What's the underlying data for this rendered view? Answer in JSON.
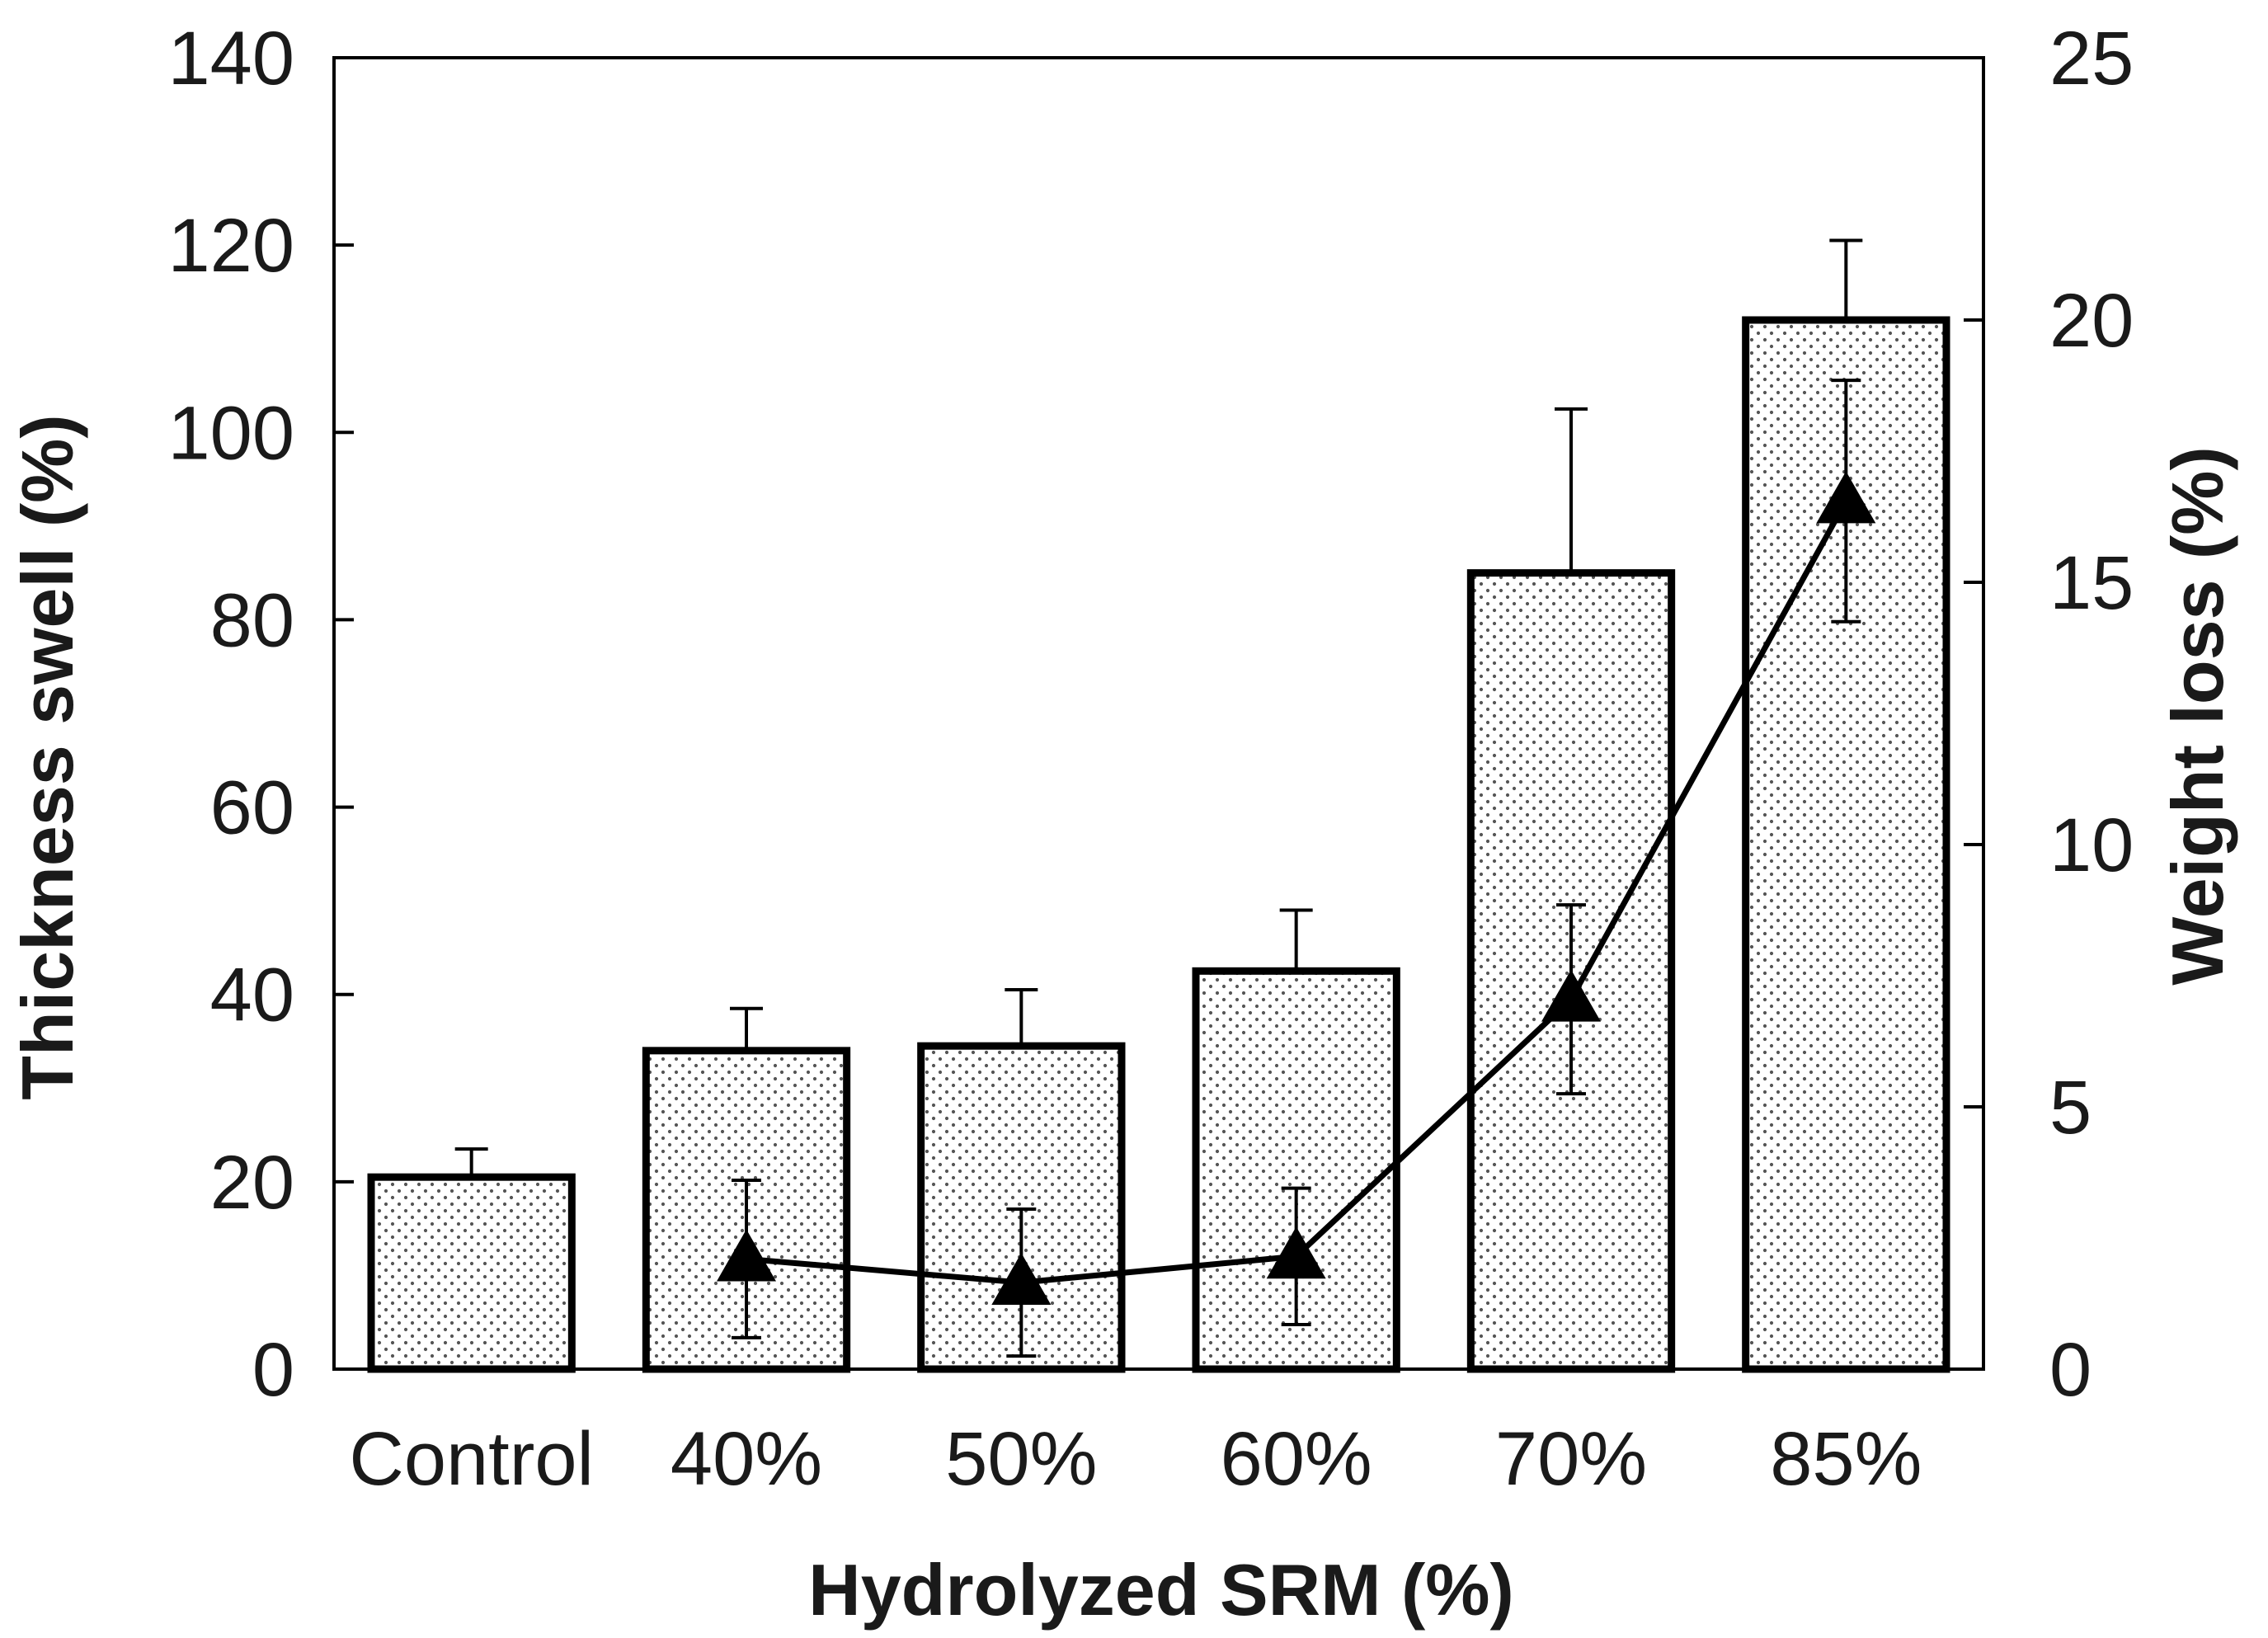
{
  "chart_data": {
    "type": "bar",
    "title": "",
    "categories": [
      "Control",
      "40%",
      "50%",
      "60%",
      "70%",
      "85%"
    ],
    "series": [
      {
        "name": "Thickness swell",
        "type": "bar",
        "axis": "left",
        "values": [
          20.5,
          34,
          34.5,
          42.5,
          85,
          112
        ],
        "errors": [
          3,
          4.5,
          6,
          6.5,
          17.5,
          8.5
        ]
      },
      {
        "name": "Weight loss",
        "type": "line",
        "axis": "right",
        "marker": "triangle",
        "values": [
          null,
          2.1,
          1.65,
          2.15,
          7.05,
          16.55
        ],
        "errors": [
          null,
          1.5,
          1.4,
          1.3,
          1.8,
          2.3
        ]
      }
    ],
    "xlabel": "Hydrolyzed SRM (%)",
    "ylabel": "Thickness swell (%)",
    "y2label": "Weight loss (%)",
    "ylim": [
      0,
      140
    ],
    "y2lim": [
      0,
      25
    ],
    "yticks": [
      "0",
      "20",
      "40",
      "60",
      "80",
      "100",
      "120",
      "140"
    ],
    "y2ticks": [
      "0",
      "5",
      "10",
      "15",
      "20",
      "25"
    ],
    "bar_pattern": "dotted",
    "colors": {
      "bar_fill": "#ffffff",
      "dots": "#555555",
      "stroke": "#000000",
      "line": "#000000"
    },
    "grid": false
  }
}
